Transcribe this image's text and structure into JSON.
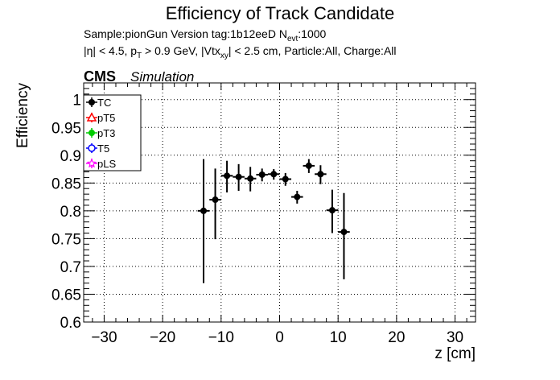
{
  "header": {
    "title": "Efficiency of Track Candidate",
    "sample_line": {
      "text": "Sample:pionGun   Version tag:1b12eeD  N",
      "sub": "evt",
      "suffix": ":1000"
    },
    "cuts_line": {
      "part1": "|η| < 4.5, p",
      "sub1": "T",
      "part2": " > 0.9 GeV, |Vtx",
      "sub2": "xy",
      "part3": "| < 2.5 cm, Particle:All, Charge:All"
    },
    "cms_label": "CMS",
    "simulation_label": "Simulation"
  },
  "legend": {
    "entries": [
      {
        "label": "TC",
        "color": "#000000",
        "marker": "filled-circle"
      },
      {
        "label": "pT5",
        "color": "#ff0000",
        "marker": "open-triangle"
      },
      {
        "label": "pT3",
        "color": "#00cc00",
        "marker": "filled-circle"
      },
      {
        "label": "T5",
        "color": "#0000ff",
        "marker": "open-circle"
      },
      {
        "label": "pLS",
        "color": "#ff00ff",
        "marker": "open-star"
      }
    ]
  },
  "chart_data": {
    "type": "scatter",
    "title": "Efficiency of Track Candidate",
    "xlabel": "z [cm]",
    "ylabel": "Efficiency",
    "xlim": [
      -33.5,
      33.5
    ],
    "ylim": [
      0.6,
      1.03
    ],
    "x_ticks": [
      -30,
      -20,
      -10,
      0,
      10,
      20,
      30
    ],
    "x_tick_labels": [
      "−30",
      "−20",
      "−10",
      "0",
      "10",
      "20",
      "30"
    ],
    "y_ticks": [
      0.6,
      0.65,
      0.7,
      0.75,
      0.8,
      0.85,
      0.9,
      0.95,
      1.0
    ],
    "y_tick_labels": [
      "0.6",
      "0.65",
      "0.7",
      "0.75",
      "0.8",
      "0.85",
      "0.9",
      "0.95",
      "1"
    ],
    "grid": true,
    "legend_position": "top-left",
    "series": [
      {
        "name": "TC",
        "color": "#000000",
        "x": [
          -13,
          -11,
          -9,
          -7,
          -5,
          -3,
          -1,
          1,
          3,
          5,
          7,
          9,
          11
        ],
        "x_err": [
          1,
          1,
          1,
          1,
          1,
          1,
          1,
          1,
          1,
          1,
          1,
          1,
          1
        ],
        "y": [
          0.8,
          0.82,
          0.863,
          0.861,
          0.858,
          0.865,
          0.866,
          0.857,
          0.825,
          0.881,
          0.866,
          0.801,
          0.762
        ],
        "y_err_low": [
          0.13,
          0.071,
          0.03,
          0.025,
          0.023,
          0.012,
          0.01,
          0.012,
          0.012,
          0.013,
          0.018,
          0.041,
          0.085
        ],
        "y_err_high": [
          0.093,
          0.056,
          0.027,
          0.023,
          0.021,
          0.011,
          0.009,
          0.011,
          0.011,
          0.012,
          0.016,
          0.037,
          0.07
        ]
      }
    ]
  }
}
